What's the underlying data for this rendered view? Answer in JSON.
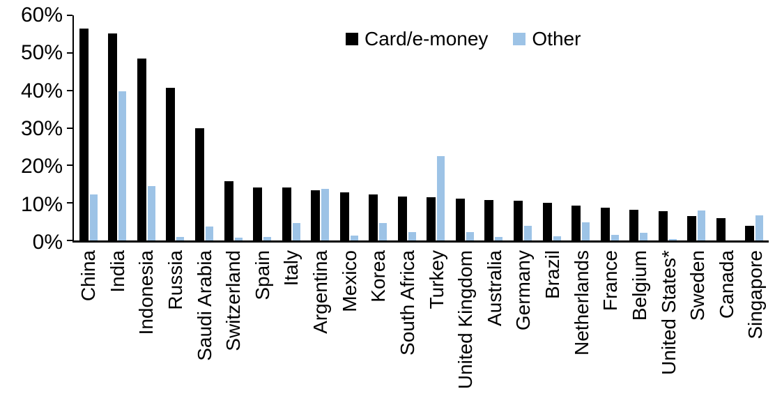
{
  "chart_data": {
    "type": "bar",
    "title": "",
    "xlabel": "",
    "ylabel": "",
    "categories": [
      "China",
      "India",
      "Indonesia",
      "Russia",
      "Saudi Arabia",
      "Switzerland",
      "Spain",
      "Italy",
      "Argentina",
      "Mexico",
      "Korea",
      "South Africa",
      "Turkey",
      "United Kingdom",
      "Australia",
      "Germany",
      "Brazil",
      "Netherlands",
      "France",
      "Belgium",
      "United States*",
      "Sweden",
      "Canada",
      "Singapore"
    ],
    "series": [
      {
        "name": "Card/e-money",
        "color": "#000000",
        "values": [
          56.4,
          55.2,
          48.4,
          40.6,
          29.9,
          15.7,
          14.2,
          14.1,
          13.4,
          12.9,
          12.2,
          11.7,
          11.6,
          11.1,
          10.8,
          10.5,
          10.0,
          9.3,
          8.7,
          8.1,
          7.8,
          6.5,
          5.9,
          3.9
        ]
      },
      {
        "name": "Other",
        "color": "#9dc3e6",
        "values": [
          12.3,
          39.8,
          14.5,
          0.9,
          3.8,
          0.7,
          1.0,
          4.6,
          13.8,
          1.3,
          4.6,
          2.3,
          22.5,
          2.3,
          1.0,
          3.9,
          1.2,
          4.8,
          1.5,
          2.0,
          0.3,
          8.0,
          0.0,
          6.6
        ]
      }
    ],
    "y_axis": {
      "min": 0,
      "max": 60,
      "ticks": [
        "0%",
        "10%",
        "20%",
        "30%",
        "40%",
        "50%",
        "60%"
      ]
    },
    "grid": false,
    "legend_position": "top-center"
  }
}
